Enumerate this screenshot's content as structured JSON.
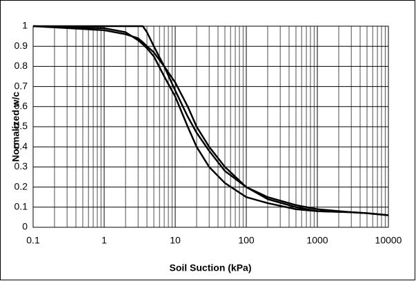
{
  "chart_data": {
    "type": "line",
    "xlabel": "Soil Suction (kPa)",
    "ylabel": "Normalized w/c",
    "x": [
      0.1,
      1,
      2,
      3,
      3.5,
      4,
      5,
      7,
      10,
      15,
      20,
      30,
      50,
      100,
      200,
      500,
      1000,
      3000,
      5000,
      10000
    ],
    "series": [
      {
        "color": "#000000",
        "values": [
          1,
          1,
          1,
          1,
          1,
          0.97,
          0.9,
          0.8,
          0.72,
          0.6,
          0.5,
          0.4,
          0.3,
          0.2,
          0.14,
          0.1,
          0.08,
          0.075,
          0.07,
          0.06
        ]
      },
      {
        "color": "#000000",
        "values": [
          1,
          0.99,
          0.97,
          0.93,
          0.91,
          0.89,
          0.85,
          0.75,
          0.65,
          0.5,
          0.4,
          0.3,
          0.22,
          0.15,
          0.12,
          0.09,
          0.08,
          0.075,
          0.07,
          0.06
        ]
      },
      {
        "color": "#000000",
        "values": [
          1,
          0.98,
          0.96,
          0.94,
          0.92,
          0.9,
          0.87,
          0.8,
          0.68,
          0.55,
          0.47,
          0.38,
          0.28,
          0.2,
          0.15,
          0.11,
          0.09,
          0.075,
          0.07,
          0.06
        ]
      }
    ],
    "xlim": [
      0.1,
      10000
    ],
    "xticks": [
      0.1,
      1,
      10,
      100,
      1000,
      10000
    ],
    "xscale": "log",
    "ylim": [
      0,
      1
    ],
    "yticks": [
      0,
      0.1,
      0.2,
      0.3,
      0.4,
      0.5,
      0.6,
      0.7,
      0.8,
      0.9,
      1
    ],
    "grid": true,
    "minor_grid": true
  }
}
